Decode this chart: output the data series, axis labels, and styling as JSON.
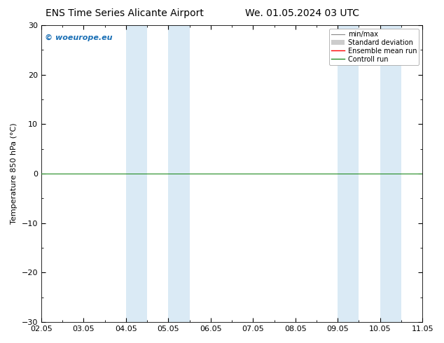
{
  "title_left": "ENS Time Series Alicante Airport",
  "title_right": "We. 01.05.2024 03 UTC",
  "ylabel": "Temperature 850 hPa (°C)",
  "ylim": [
    -30,
    30
  ],
  "yticks": [
    -30,
    -20,
    -10,
    0,
    10,
    20,
    30
  ],
  "xlim": [
    0,
    9
  ],
  "xtick_labels": [
    "02.05",
    "03.05",
    "04.05",
    "05.05",
    "06.05",
    "07.05",
    "08.05",
    "09.05",
    "10.05",
    "11.05"
  ],
  "xtick_positions": [
    0,
    1,
    2,
    3,
    4,
    5,
    6,
    7,
    8,
    9
  ],
  "blue_bands": [
    [
      2.0,
      2.5
    ],
    [
      3.0,
      3.5
    ],
    [
      7.0,
      7.5
    ],
    [
      8.0,
      8.5
    ]
  ],
  "blue_band_color": "#daeaf5",
  "hline_y": 0,
  "hline_color": "#228B22",
  "background_color": "#ffffff",
  "watermark": "© woeurope.eu",
  "watermark_color": "#1a6fb5",
  "legend_min_max_color": "#888888",
  "legend_std_color": "#cccccc",
  "legend_ensemble_color": "#ff0000",
  "legend_control_color": "#228B22",
  "title_fontsize": 10,
  "axis_label_fontsize": 8,
  "tick_fontsize": 8
}
